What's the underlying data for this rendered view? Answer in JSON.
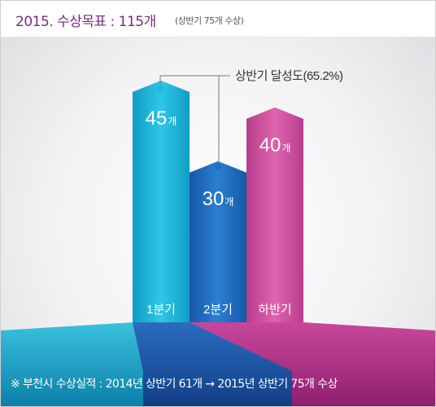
{
  "header": {
    "title": "2015. 수상목표 : 115개",
    "subtitle": "(상반기 75개 수상)"
  },
  "chart_data": {
    "type": "bar",
    "title": "2015. 수상목표 : 115개",
    "subtitle": "(상반기 75개 수상)",
    "categories": [
      "1분기",
      "2분기",
      "하반기"
    ],
    "values": [
      45,
      30,
      40
    ],
    "value_labels": [
      "45",
      "30",
      "40"
    ],
    "unit": "개",
    "annotation": "상반기 달성도(65.2%)",
    "colors": {
      "q1": "#1fb8da",
      "q2": "#1e6fc2",
      "h2": "#d2529f"
    }
  },
  "footnote": "※ 부천시 수상실적 : 2014년 상반기 61개 → 2015년 상반기 75개 수상"
}
